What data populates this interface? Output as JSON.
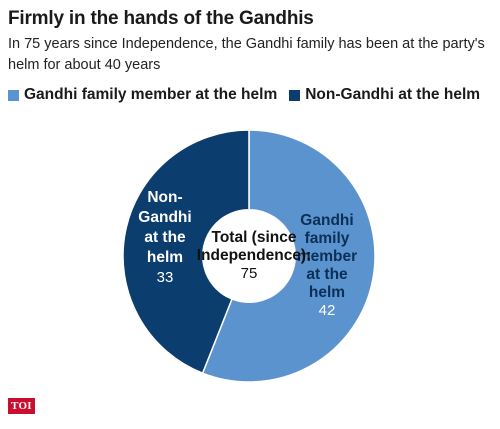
{
  "header": {
    "title": "Firmly in the hands of the Gandhis",
    "subtitle": "In 75 years since Independence, the Gandhi family has been at the party's helm for about 40 years"
  },
  "colors": {
    "gandhi": "#5b93ce",
    "non_gandhi": "#0b3d6e",
    "center": "#ffffff"
  },
  "chart_data": {
    "type": "pie",
    "variant": "donut",
    "legend_position": "top",
    "labels": [
      "Gandhi family member at the helm",
      "Non-Gandhi at the helm"
    ],
    "values": [
      42,
      33
    ],
    "slice_labels": [
      {
        "lines": [
          "Gandhi",
          "family",
          "member",
          "at the",
          "helm"
        ],
        "value": "42"
      },
      {
        "lines": [
          "Non-",
          "Gandhi",
          "at the",
          "helm"
        ],
        "value": "33"
      }
    ],
    "center_label": {
      "lines": [
        "Total (since",
        "Independence):"
      ],
      "value": "75"
    }
  },
  "footer": {
    "logo_text": "TOI"
  }
}
